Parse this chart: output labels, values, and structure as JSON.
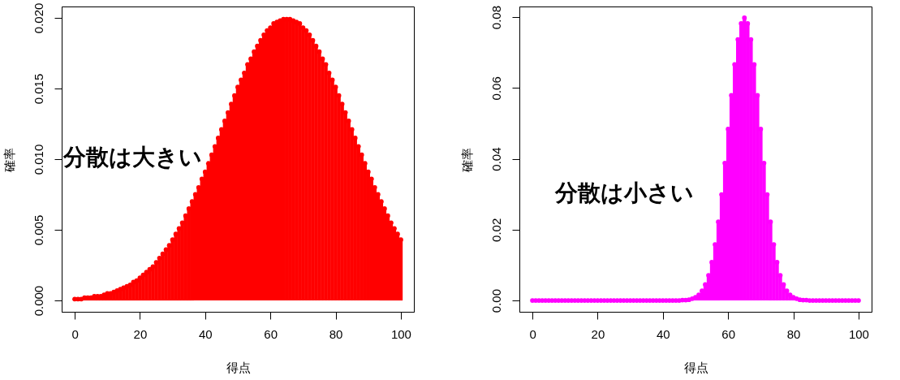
{
  "chart_data": [
    {
      "type": "lollipop",
      "xlabel": "得点",
      "ylabel": "確率",
      "color": "#ff0000",
      "marker": "circle",
      "annotations": [
        "分散は大きい"
      ],
      "x": [
        0,
        1,
        2,
        3,
        4,
        5,
        6,
        7,
        8,
        9,
        10,
        11,
        12,
        13,
        14,
        15,
        16,
        17,
        18,
        19,
        20,
        21,
        22,
        23,
        24,
        25,
        26,
        27,
        28,
        29,
        30,
        31,
        32,
        33,
        34,
        35,
        36,
        37,
        38,
        39,
        40,
        41,
        42,
        43,
        44,
        45,
        46,
        47,
        48,
        49,
        50,
        51,
        52,
        53,
        54,
        55,
        56,
        57,
        58,
        59,
        60,
        61,
        62,
        63,
        64,
        65,
        66,
        67,
        68,
        69,
        70,
        71,
        72,
        73,
        74,
        75,
        76,
        77,
        78,
        79,
        80,
        81,
        82,
        83,
        84,
        85,
        86,
        87,
        88,
        89,
        90,
        91,
        92,
        93,
        94,
        95,
        96,
        97,
        98,
        99,
        100
      ],
      "values": [
        0.0001,
        0.0001,
        0.0001,
        0.0002,
        0.0002,
        0.0002,
        0.0003,
        0.0003,
        0.0003,
        0.0004,
        0.0005,
        0.0005,
        0.0006,
        0.0007,
        0.0008,
        0.0009,
        0.001,
        0.0011,
        0.0013,
        0.0014,
        0.0016,
        0.0018,
        0.002,
        0.0022,
        0.0024,
        0.0027,
        0.003,
        0.0033,
        0.0036,
        0.0039,
        0.0043,
        0.0047,
        0.0051,
        0.0055,
        0.006,
        0.0065,
        0.007,
        0.0075,
        0.008,
        0.0086,
        0.0091,
        0.0097,
        0.0103,
        0.0109,
        0.0115,
        0.0121,
        0.0127,
        0.0133,
        0.0139,
        0.0145,
        0.0151,
        0.0156,
        0.0161,
        0.0167,
        0.0171,
        0.0176,
        0.018,
        0.0184,
        0.0188,
        0.0191,
        0.0193,
        0.0196,
        0.0197,
        0.0198,
        0.0199,
        0.0199,
        0.0199,
        0.0198,
        0.0197,
        0.0196,
        0.0193,
        0.0191,
        0.0188,
        0.0184,
        0.018,
        0.0176,
        0.0171,
        0.0167,
        0.0161,
        0.0156,
        0.0151,
        0.0145,
        0.0139,
        0.0133,
        0.0127,
        0.0121,
        0.0115,
        0.0109,
        0.0103,
        0.0097,
        0.0091,
        0.0086,
        0.008,
        0.0075,
        0.007,
        0.0065,
        0.006,
        0.0055,
        0.0051,
        0.0047,
        0.0043
      ],
      "xlim": [
        -4,
        104
      ],
      "xticks": [
        0,
        20,
        40,
        60,
        80,
        100
      ],
      "ylim": [
        -0.0008,
        0.0208
      ],
      "yticks": [
        {
          "value": 0,
          "label": "0.000"
        },
        0.005,
        {
          "value": 0.01,
          "label": "0.010"
        },
        0.015,
        {
          "value": 0.02,
          "label": "0.020"
        }
      ]
    },
    {
      "type": "lollipop",
      "xlabel": "得点",
      "ylabel": "確率",
      "color": "#ff00ff",
      "marker": "circle",
      "annotations": [
        "分散は小さい"
      ],
      "x": [
        0,
        1,
        2,
        3,
        4,
        5,
        6,
        7,
        8,
        9,
        10,
        11,
        12,
        13,
        14,
        15,
        16,
        17,
        18,
        19,
        20,
        21,
        22,
        23,
        24,
        25,
        26,
        27,
        28,
        29,
        30,
        31,
        32,
        33,
        34,
        35,
        36,
        37,
        38,
        39,
        40,
        41,
        42,
        43,
        44,
        45,
        46,
        47,
        48,
        49,
        50,
        51,
        52,
        53,
        54,
        55,
        56,
        57,
        58,
        59,
        60,
        61,
        62,
        63,
        64,
        65,
        66,
        67,
        68,
        69,
        70,
        71,
        72,
        73,
        74,
        75,
        76,
        77,
        78,
        79,
        80,
        81,
        82,
        83,
        84,
        85,
        86,
        87,
        88,
        89,
        90,
        91,
        92,
        93,
        94,
        95,
        96,
        97,
        98,
        99,
        100
      ],
      "values": [
        0,
        0,
        0,
        0,
        0,
        0,
        0,
        0,
        0,
        0,
        0,
        0,
        0,
        0,
        0,
        0,
        0,
        0,
        0,
        0,
        0,
        0,
        0,
        0,
        0,
        0,
        0,
        0,
        0,
        0,
        0,
        0,
        0,
        0,
        0,
        0,
        0,
        0,
        0,
        0,
        0,
        0,
        0,
        0,
        0,
        0,
        0.0001,
        0.0001,
        0.0002,
        0.0005,
        0.0009,
        0.0016,
        0.0027,
        0.0045,
        0.0071,
        0.0108,
        0.0158,
        0.0222,
        0.0299,
        0.0388,
        0.0484,
        0.0579,
        0.0666,
        0.0737,
        0.0782,
        0.0798,
        0.0782,
        0.0737,
        0.0666,
        0.0579,
        0.0484,
        0.0388,
        0.0299,
        0.0222,
        0.0158,
        0.0108,
        0.0071,
        0.0045,
        0.0027,
        0.0016,
        0.0009,
        0.0005,
        0.0002,
        0.0001,
        0.0001,
        0,
        0,
        0,
        0,
        0,
        0,
        0,
        0,
        0,
        0,
        0,
        0,
        0,
        0,
        0,
        0
      ],
      "xlim": [
        -4,
        104
      ],
      "xticks": [
        0,
        20,
        40,
        60,
        80,
        100
      ],
      "ylim": [
        -0.0032,
        0.083
      ],
      "yticks": [
        {
          "value": 0,
          "label": "0.00"
        },
        0.02,
        0.04,
        0.06,
        0.08
      ]
    }
  ]
}
